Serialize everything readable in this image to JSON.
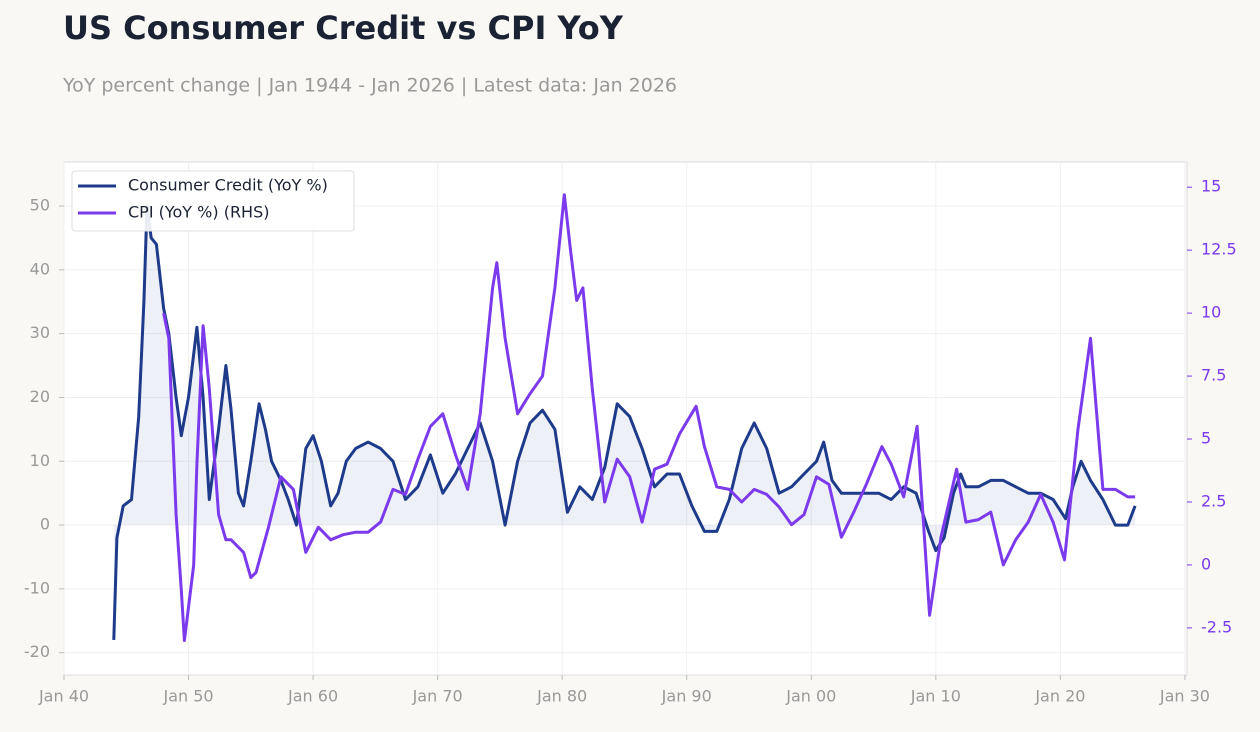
{
  "chart_data": {
    "type": "line",
    "title": "US Consumer Credit vs CPI YoY",
    "subtitle": "YoY percent change | Jan 1944 - Jan 2026 | Latest data: Jan 2026",
    "legend": "upper left",
    "grid": true,
    "fill_first_series": true,
    "xlim": [
      "1940-01",
      "2030-03"
    ],
    "xticks": [
      {
        "value": "1940-01",
        "label": "Jan 40"
      },
      {
        "value": "1950-01",
        "label": "Jan 50"
      },
      {
        "value": "1960-01",
        "label": "Jan 60"
      },
      {
        "value": "1970-01",
        "label": "Jan 70"
      },
      {
        "value": "1980-01",
        "label": "Jan 80"
      },
      {
        "value": "1990-01",
        "label": "Jan 90"
      },
      {
        "value": "2000-01",
        "label": "Jan 00"
      },
      {
        "value": "2010-01",
        "label": "Jan 10"
      },
      {
        "value": "2020-01",
        "label": "Jan 20"
      },
      {
        "value": "2030-01",
        "label": "Jan 30"
      }
    ],
    "ylim": [
      -23.5,
      56.9
    ],
    "yticks": [
      -20,
      -10,
      0,
      10,
      20,
      30,
      40,
      50
    ],
    "y2lim": [
      -4.37,
      16.0
    ],
    "y2ticks": [
      -2.5,
      0,
      2.5,
      5,
      7.5,
      10,
      12.5,
      15
    ],
    "series": [
      {
        "name": "Consumer Credit (YoY %)",
        "color": "#1e3a8a",
        "x": [
          "1944-01",
          "1944-04",
          "1944-10",
          "1945-06",
          "1946-01",
          "1946-06",
          "1946-09",
          "1947-01",
          "1947-06",
          "1948-01",
          "1948-06",
          "1949-01",
          "1949-06",
          "1950-01",
          "1950-09",
          "1951-03",
          "1951-09",
          "1952-06",
          "1953-01",
          "1953-06",
          "1954-01",
          "1954-06",
          "1955-01",
          "1955-09",
          "1956-03",
          "1956-09",
          "1957-06",
          "1958-01",
          "1958-09",
          "1959-06",
          "1960-01",
          "1960-09",
          "1961-06",
          "1962-01",
          "1962-09",
          "1963-06",
          "1964-06",
          "1965-06",
          "1966-06",
          "1967-06",
          "1968-06",
          "1969-06",
          "1970-06",
          "1971-06",
          "1972-06",
          "1973-06",
          "1974-06",
          "1975-06",
          "1976-06",
          "1977-06",
          "1978-06",
          "1979-06",
          "1980-06",
          "1981-06",
          "1982-06",
          "1983-06",
          "1984-06",
          "1985-06",
          "1986-06",
          "1987-06",
          "1988-06",
          "1989-06",
          "1990-06",
          "1991-06",
          "1992-06",
          "1993-06",
          "1994-06",
          "1995-06",
          "1996-06",
          "1997-06",
          "1998-06",
          "1999-06",
          "2000-06",
          "2001-01",
          "2001-09",
          "2002-06",
          "2003-06",
          "2004-06",
          "2005-06",
          "2006-06",
          "2007-06",
          "2008-06",
          "2009-06",
          "2010-01",
          "2010-09",
          "2011-06",
          "2012-01",
          "2012-06",
          "2013-06",
          "2014-06",
          "2015-06",
          "2016-06",
          "2017-06",
          "2018-06",
          "2019-06",
          "2020-06",
          "2021-01",
          "2021-09",
          "2022-06",
          "2023-06",
          "2024-06",
          "2025-06",
          "2026-01"
        ],
        "values": [
          -18,
          -2,
          3,
          4,
          17,
          35,
          50,
          45,
          44,
          34,
          30,
          20,
          14,
          20,
          31,
          20,
          4,
          15,
          25,
          18,
          5,
          3,
          10,
          19,
          15,
          10,
          7,
          4,
          0,
          12,
          14,
          10,
          3,
          5,
          10,
          12,
          13,
          12,
          10,
          4,
          6,
          11,
          5,
          8,
          12,
          16,
          10,
          0,
          10,
          16,
          18,
          15,
          2,
          6,
          4,
          9,
          19,
          17,
          12,
          6,
          8,
          8,
          3,
          -1,
          -1,
          4,
          12,
          16,
          12,
          5,
          6,
          8,
          10,
          13,
          7,
          5,
          5,
          5,
          5,
          4,
          6,
          5,
          -1,
          -4,
          -2,
          5,
          8,
          6,
          6,
          7,
          7,
          6,
          5,
          5,
          4,
          1,
          6,
          10,
          7,
          4,
          0,
          0,
          3
        ]
      },
      {
        "name": "CPI (YoY %) (RHS)",
        "color": "#7c3aed",
        "axis": "y2",
        "x": [
          "1948-01",
          "1948-06",
          "1949-01",
          "1949-06",
          "1949-09",
          "1950-06",
          "1950-09",
          "1951-03",
          "1951-09",
          "1952-06",
          "1953-01",
          "1953-06",
          "1954-06",
          "1955-01",
          "1955-06",
          "1956-06",
          "1957-06",
          "1958-06",
          "1959-06",
          "1960-06",
          "1961-06",
          "1962-06",
          "1963-06",
          "1964-06",
          "1965-06",
          "1966-06",
          "1967-06",
          "1968-06",
          "1969-06",
          "1970-06",
          "1971-06",
          "1972-06",
          "1973-06",
          "1974-06",
          "1974-10",
          "1975-06",
          "1976-06",
          "1977-06",
          "1978-06",
          "1979-06",
          "1980-03",
          "1980-09",
          "1981-03",
          "1981-09",
          "1982-06",
          "1983-06",
          "1984-06",
          "1985-06",
          "1986-06",
          "1987-06",
          "1988-06",
          "1989-06",
          "1990-10",
          "1991-06",
          "1992-06",
          "1993-06",
          "1994-06",
          "1995-06",
          "1996-06",
          "1997-06",
          "1998-06",
          "1999-06",
          "2000-06",
          "2001-06",
          "2002-06",
          "2003-06",
          "2004-06",
          "2005-09",
          "2006-06",
          "2007-06",
          "2008-07",
          "2009-07",
          "2010-06",
          "2011-09",
          "2012-06",
          "2013-06",
          "2014-06",
          "2015-06",
          "2016-06",
          "2017-06",
          "2018-06",
          "2019-06",
          "2020-05",
          "2021-06",
          "2022-06",
          "2023-06",
          "2024-06",
          "2025-06",
          "2026-01"
        ],
        "values": [
          10,
          9,
          2,
          -1,
          -3,
          0,
          4,
          9.5,
          7,
          2,
          1,
          1,
          0.5,
          -0.5,
          -0.3,
          1.5,
          3.5,
          3,
          0.5,
          1.5,
          1,
          1.2,
          1.3,
          1.3,
          1.7,
          3,
          2.8,
          4.2,
          5.5,
          6,
          4.4,
          3,
          6,
          11,
          12,
          9,
          6,
          6.8,
          7.5,
          11,
          14.7,
          12.5,
          10.5,
          11,
          7,
          2.5,
          4.2,
          3.5,
          1.7,
          3.8,
          4,
          5.2,
          6.3,
          4.7,
          3.1,
          3,
          2.5,
          3,
          2.8,
          2.3,
          1.6,
          2,
          3.5,
          3.2,
          1.1,
          2.1,
          3.2,
          4.7,
          4,
          2.7,
          5.5,
          -2,
          1.1,
          3.8,
          1.7,
          1.8,
          2.1,
          0,
          1,
          1.7,
          2.8,
          1.7,
          0.2,
          5.4,
          9,
          3,
          3,
          2.7,
          2.7
        ]
      }
    ]
  }
}
